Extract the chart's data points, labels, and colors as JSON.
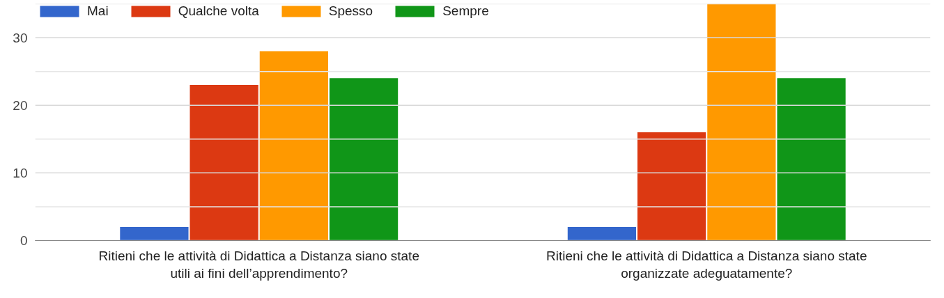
{
  "chart_data": {
    "type": "bar",
    "categories": [
      "Ritieni che le attività di Didattica a Distanza siano state utili ai fini dell’apprendimento?",
      "Ritieni che le attività di Didattica a Distanza siano state organizzate adeguatamente?"
    ],
    "series": [
      {
        "name": "Mai",
        "color": "#3366cc",
        "values": [
          2,
          2
        ]
      },
      {
        "name": "Qualche volta",
        "color": "#dc3912",
        "values": [
          23,
          16
        ]
      },
      {
        "name": "Spesso",
        "color": "#ff9900",
        "values": [
          28,
          35
        ]
      },
      {
        "name": "Sempre",
        "color": "#109618",
        "values": [
          24,
          24
        ]
      }
    ],
    "ylim": [
      0,
      35
    ],
    "yticks": [
      0,
      {
        "value": 5,
        "label": null
      },
      10,
      {
        "value": 15,
        "label": null
      },
      20,
      {
        "value": 25,
        "label": null
      },
      30,
      {
        "value": 35,
        "label": null
      }
    ],
    "grid": "y",
    "legend": "top left"
  }
}
